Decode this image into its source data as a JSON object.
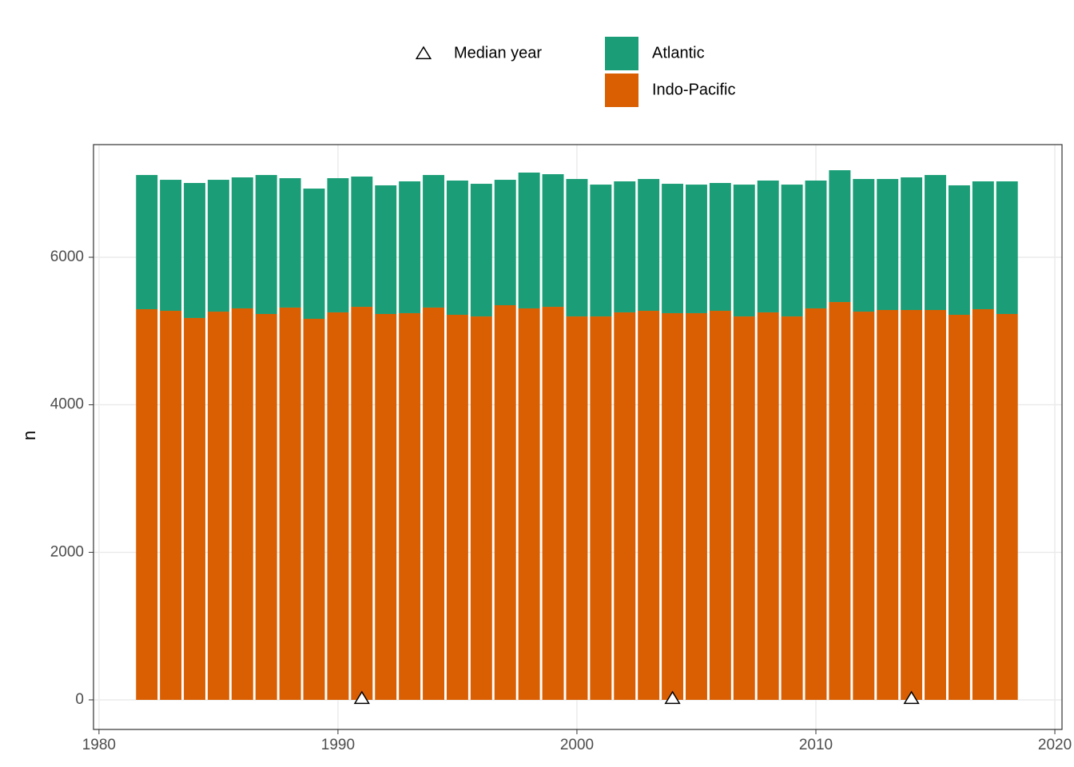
{
  "chart_data": {
    "type": "bar",
    "stacked": true,
    "x": [
      1982,
      1983,
      1984,
      1985,
      1986,
      1987,
      1988,
      1989,
      1990,
      1991,
      1992,
      1993,
      1994,
      1995,
      1996,
      1997,
      1998,
      1999,
      2000,
      2001,
      2002,
      2003,
      2004,
      2005,
      2006,
      2007,
      2008,
      2009,
      2010,
      2011,
      2012,
      2013,
      2014,
      2015,
      2016,
      2017,
      2018
    ],
    "series": [
      {
        "name": "Indo-Pacific",
        "color": "#d95f02",
        "values": [
          5296,
          5274,
          5177,
          5263,
          5307,
          5231,
          5318,
          5166,
          5253,
          5328,
          5231,
          5242,
          5318,
          5220,
          5198,
          5350,
          5307,
          5328,
          5198,
          5198,
          5253,
          5274,
          5242,
          5242,
          5274,
          5198,
          5253,
          5198,
          5307,
          5393,
          5263,
          5285,
          5285,
          5285,
          5220,
          5296,
          5231
        ]
      },
      {
        "name": "Atlantic",
        "color": "#1b9e77",
        "values": [
          1819,
          1776,
          1830,
          1787,
          1776,
          1884,
          1754,
          1765,
          1819,
          1766,
          1744,
          1787,
          1797,
          1820,
          1798,
          1700,
          1841,
          1798,
          1863,
          1787,
          1776,
          1787,
          1754,
          1743,
          1733,
          1787,
          1787,
          1787,
          1733,
          1787,
          1798,
          1776,
          1798,
          1830,
          1755,
          1733,
          1798
        ]
      }
    ],
    "median_year": {
      "name": "Median year",
      "x": [
        1991,
        2004,
        2014
      ],
      "values": [
        0,
        0,
        0
      ]
    },
    "ylabel": "n",
    "xlim": [
      1979.77,
      2020.3
    ],
    "xticks": [
      1980,
      1990,
      2000,
      2010,
      2020
    ],
    "ylim": [
      -401,
      7527
    ],
    "yticks": [
      0,
      2000,
      4000,
      6000
    ],
    "grid": true,
    "legend": "top"
  }
}
